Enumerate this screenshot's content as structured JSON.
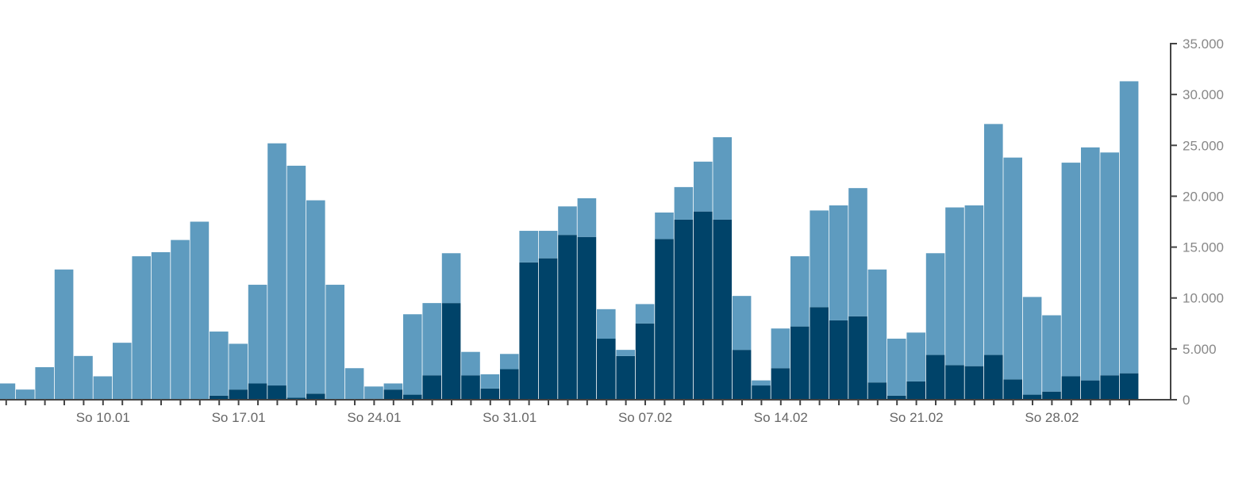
{
  "chart_data": {
    "type": "bar",
    "stacked": true,
    "grid": false,
    "legend": "none",
    "y_axis_position": "right",
    "ylim": [
      0,
      35000
    ],
    "y_ticks": [
      0,
      5000,
      10000,
      15000,
      20000,
      25000,
      30000,
      35000
    ],
    "y_tick_labels": [
      "0",
      "5.000",
      "10.000",
      "15.000",
      "20.000",
      "25.000",
      "30.000",
      "35.000"
    ],
    "x_tick_labels": [
      {
        "label": "So 10.01",
        "index": 5
      },
      {
        "label": "So 17.01",
        "index": 12
      },
      {
        "label": "So 24.01",
        "index": 19
      },
      {
        "label": "So 31.01",
        "index": 26
      },
      {
        "label": "So 07.02",
        "index": 33
      },
      {
        "label": "So 14.02",
        "index": 40
      },
      {
        "label": "So 21.02",
        "index": 47
      },
      {
        "label": "So 28.02",
        "index": 54
      }
    ],
    "colors": {
      "dark": "#004369",
      "light": "#5e9bbf"
    },
    "series": [
      {
        "values": [
          0,
          0,
          0,
          0,
          0,
          0,
          0,
          0,
          0,
          0,
          0,
          400,
          1000,
          1600,
          1400,
          200,
          600,
          0,
          0,
          100,
          1000,
          500,
          2400,
          9500,
          2400,
          1100,
          3000,
          13500,
          13900,
          16200,
          16000,
          6000,
          4300,
          7500,
          15800,
          17700,
          18500,
          17700,
          4900,
          1400,
          3100,
          7200,
          9100,
          7800,
          8200,
          1700,
          400,
          1800,
          4400,
          3400,
          3300,
          4400,
          2000,
          500,
          800,
          2300,
          1900,
          2400,
          2600
        ]
      },
      {
        "values": [
          1600,
          1000,
          3200,
          12800,
          4300,
          2300,
          5600,
          14100,
          14500,
          15700,
          17500,
          6300,
          4500,
          9700,
          23800,
          22800,
          19000,
          11300,
          3100,
          1200,
          600,
          7900,
          7100,
          4900,
          2300,
          1400,
          1500,
          3100,
          2700,
          2800,
          3800,
          2900,
          600,
          1900,
          2600,
          3200,
          4900,
          8100,
          5300,
          500,
          3900,
          6900,
          9500,
          11300,
          12600,
          11100,
          5600,
          4800,
          10000,
          15500,
          15800,
          22700,
          21800,
          9600,
          7500,
          21000,
          22900,
          21900,
          28700
        ]
      }
    ]
  }
}
